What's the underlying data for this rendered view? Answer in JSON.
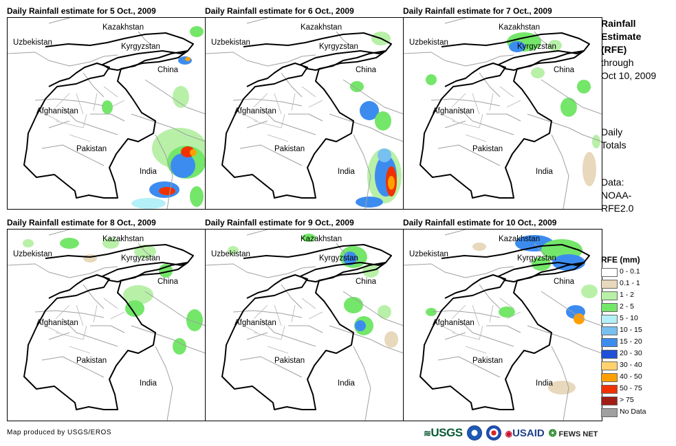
{
  "panels": [
    {
      "title": "Daily Rainfall estimate for 5 Oct., 2009"
    },
    {
      "title": "Daily Rainfall estimate for 6 Oct., 2009"
    },
    {
      "title": "Daily Rainfall estimate for 7 Oct., 2009"
    },
    {
      "title": "Daily Rainfall estimate for 8 Oct., 2009"
    },
    {
      "title": "Daily Rainfall estimate for 9 Oct., 2009"
    },
    {
      "title": "Daily Rainfall estimate for 10 Oct., 2009"
    }
  ],
  "map_labels": {
    "kazakhstan": "Kazakhstan",
    "uzbekistan": "Uzbekistan",
    "kyrgyzstan": "Kyrgyzstan",
    "china": "China",
    "afghanistan": "Afghanistan",
    "pakistan": "Pakistan",
    "india": "India"
  },
  "side": {
    "title_line1": "Rainfall",
    "title_line2": "Estimate",
    "title_line3": "(RFE)",
    "through": "through",
    "date": "Oct 10, 2009",
    "totals_line1": "Daily",
    "totals_line2": "Totals",
    "data_line1": "Data:",
    "data_line2": "NOAA-",
    "data_line3": "RFE2.0"
  },
  "legend": {
    "title": "RFE (mm)",
    "items": [
      {
        "label": "0 - 0.1",
        "color": "#ffffff"
      },
      {
        "label": "0.1 - 1",
        "color": "#e8d8bc"
      },
      {
        "label": "1 - 2",
        "color": "#b8f0a8"
      },
      {
        "label": "2 - 5",
        "color": "#74e66a"
      },
      {
        "label": "5 - 10",
        "color": "#b4f0f8"
      },
      {
        "label": "10 - 15",
        "color": "#78c0f0"
      },
      {
        "label": "15 - 20",
        "color": "#3c8cf0"
      },
      {
        "label": "20 - 30",
        "color": "#1e50d8"
      },
      {
        "label": "30 - 40",
        "color": "#ffd26e"
      },
      {
        "label": "40 - 50",
        "color": "#ffa000"
      },
      {
        "label": "50 - 75",
        "color": "#f03200"
      },
      {
        "label": "> 75",
        "color": "#a01e14"
      },
      {
        "label": "No Data",
        "color": "#a0a0a0"
      }
    ]
  },
  "credit": "Map produced by USGS/EROS",
  "logos": {
    "usgs": "USGS",
    "usaid": "USAID",
    "fews": "FEWS NET"
  }
}
